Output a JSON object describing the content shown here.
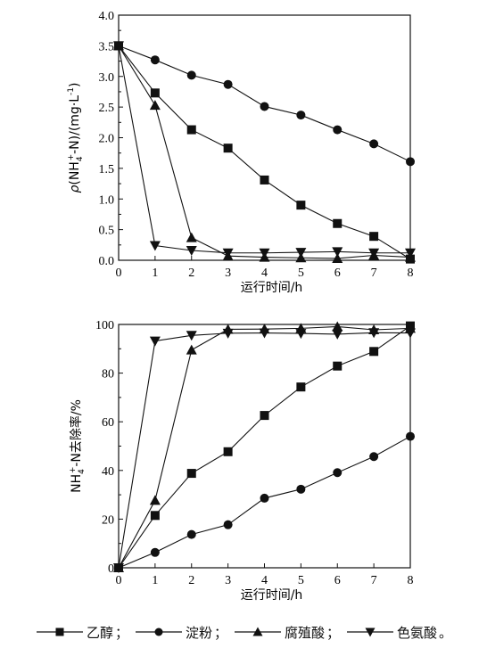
{
  "chart_data": [
    {
      "type": "line",
      "x": [
        0,
        1,
        2,
        3,
        4,
        5,
        6,
        7,
        8
      ],
      "xlabel": "运行时间/h",
      "ylabel_parts": [
        "ρ",
        "(NH",
        "4",
        "+",
        "-N)/(mg·L",
        "-1",
        ")"
      ],
      "xlim": [
        0,
        8
      ],
      "ylim": [
        0,
        4.0
      ],
      "xticks": [
        "0",
        "1",
        "2",
        "3",
        "4",
        "5",
        "6",
        "7",
        "8"
      ],
      "yticks": [
        "0.0",
        "0.5",
        "1.0",
        "1.5",
        "2.0",
        "2.5",
        "3.0",
        "3.5",
        "4.0"
      ],
      "grid": false,
      "series": [
        {
          "name": "乙醇",
          "marker": "square",
          "values": [
            3.5,
            2.73,
            2.13,
            1.83,
            1.31,
            0.9,
            0.6,
            0.39,
            0.02
          ]
        },
        {
          "name": "淀粉",
          "marker": "circle",
          "values": [
            3.5,
            3.27,
            3.02,
            2.87,
            2.51,
            2.37,
            2.13,
            1.9,
            1.61
          ]
        },
        {
          "name": "腐殖酸",
          "marker": "triangle-up",
          "values": [
            3.5,
            2.53,
            0.37,
            0.07,
            0.05,
            0.04,
            0.03,
            0.08,
            0.05
          ]
        },
        {
          "name": "色氨酸",
          "marker": "triangle-down",
          "values": [
            3.5,
            0.24,
            0.16,
            0.12,
            0.12,
            0.13,
            0.14,
            0.12,
            0.12
          ]
        }
      ]
    },
    {
      "type": "line",
      "x": [
        0,
        1,
        2,
        3,
        4,
        5,
        6,
        7,
        8
      ],
      "xlabel": "运行时间/h",
      "ylabel_parts": [
        "NH",
        "4",
        "+",
        "-N去除率/%"
      ],
      "xlim": [
        0,
        8
      ],
      "ylim": [
        0,
        100
      ],
      "xticks": [
        "0",
        "1",
        "2",
        "3",
        "4",
        "5",
        "6",
        "7",
        "8"
      ],
      "yticks": [
        "0",
        "20",
        "40",
        "60",
        "80",
        "100"
      ],
      "grid": false,
      "series": [
        {
          "name": "乙醇",
          "marker": "square",
          "values": [
            0,
            21.5,
            38.8,
            47.7,
            62.6,
            74.3,
            82.9,
            88.9,
            99.4
          ]
        },
        {
          "name": "淀粉",
          "marker": "circle",
          "values": [
            0,
            6.3,
            13.7,
            17.7,
            28.6,
            32.3,
            39.1,
            45.7,
            54.0
          ]
        },
        {
          "name": "腐殖酸",
          "marker": "triangle-up",
          "values": [
            0,
            27.7,
            89.5,
            98.0,
            98.1,
            98.4,
            99.1,
            97.8,
            98.4
          ]
        },
        {
          "name": "色氨酸",
          "marker": "triangle-down",
          "values": [
            0,
            93.2,
            95.5,
            96.4,
            96.5,
            96.3,
            96.0,
            96.6,
            96.5
          ]
        }
      ]
    }
  ],
  "legend": {
    "items": [
      {
        "marker": "square",
        "label": "乙醇",
        "sep": "；"
      },
      {
        "marker": "circle",
        "label": "淀粉",
        "sep": "；"
      },
      {
        "marker": "triangle-up",
        "label": "腐殖酸",
        "sep": "；"
      },
      {
        "marker": "triangle-down",
        "label": "色氨酸",
        "sep": "。"
      }
    ]
  }
}
